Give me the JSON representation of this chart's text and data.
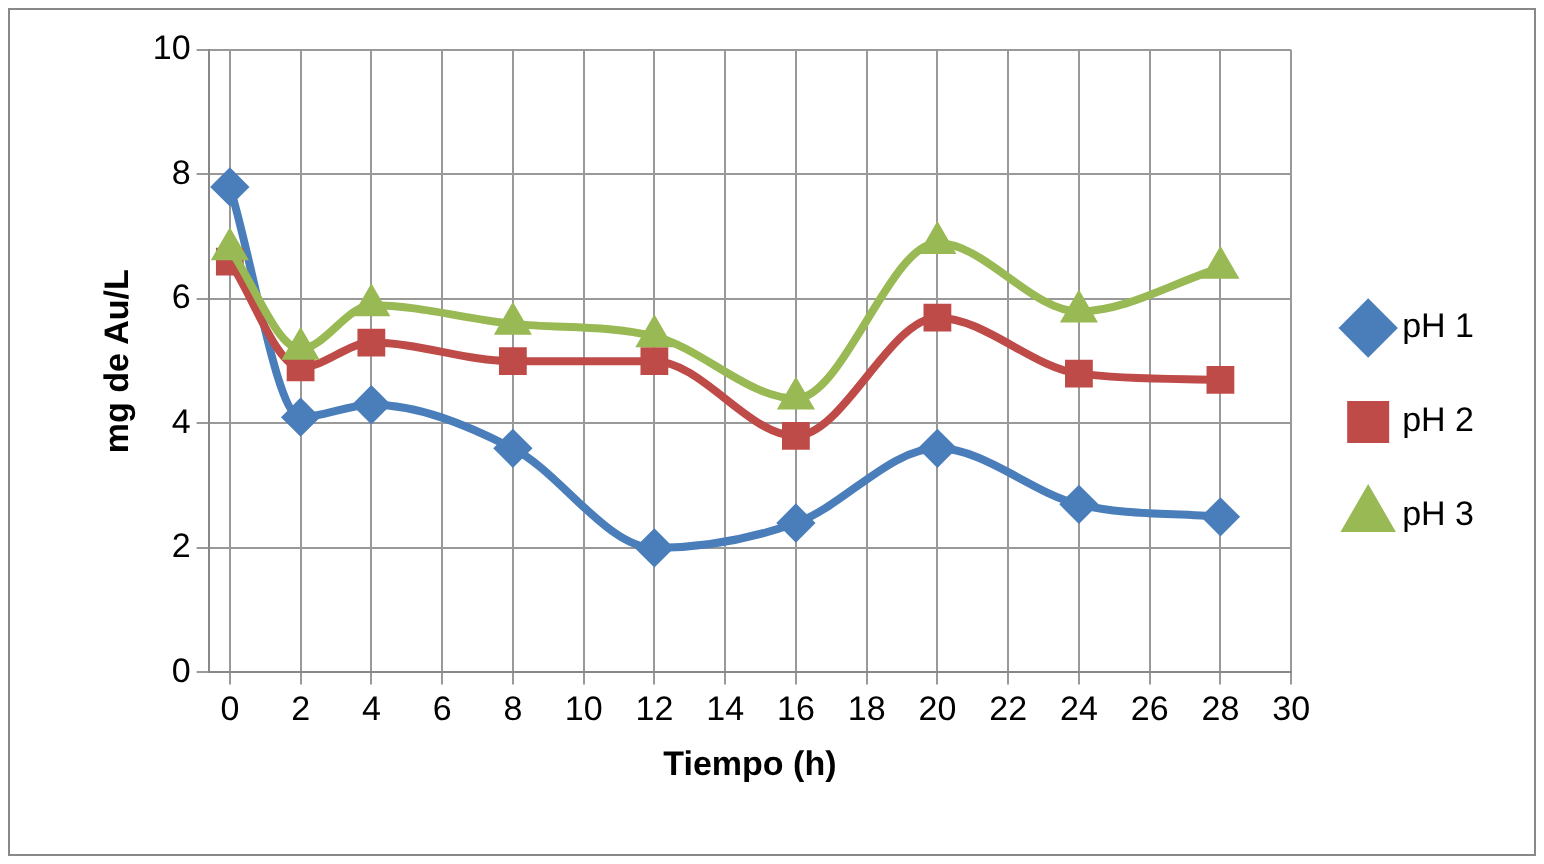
{
  "chart_data": {
    "type": "line",
    "xlabel": "Tiempo (h)",
    "ylabel": "mg de Au/L",
    "x": [
      0,
      2,
      4,
      8,
      12,
      16,
      20,
      24,
      28
    ],
    "series": [
      {
        "name": "pH 1",
        "color": "#4a7ebb",
        "values": [
          7.8,
          4.1,
          4.3,
          3.6,
          2.0,
          2.4,
          3.6,
          2.7,
          2.5
        ],
        "marker": "diamond"
      },
      {
        "name": "pH 2",
        "color": "#be4b48",
        "values": [
          6.6,
          4.9,
          5.3,
          5.0,
          5.0,
          3.8,
          5.7,
          4.8,
          4.7
        ],
        "marker": "square"
      },
      {
        "name": "pH 3",
        "color": "#98b954",
        "values": [
          6.8,
          5.2,
          5.9,
          5.6,
          5.4,
          4.4,
          6.9,
          5.8,
          6.5
        ],
        "marker": "triangle"
      }
    ],
    "xlim": [
      -0.6,
      30
    ],
    "xticks": [
      0,
      2,
      4,
      6,
      8,
      10,
      12,
      14,
      16,
      18,
      20,
      22,
      24,
      26,
      28,
      30
    ],
    "ylim": [
      0,
      10
    ],
    "yticks": [
      0,
      2,
      4,
      6,
      8,
      10
    ],
    "grid": true,
    "legend": "right"
  }
}
